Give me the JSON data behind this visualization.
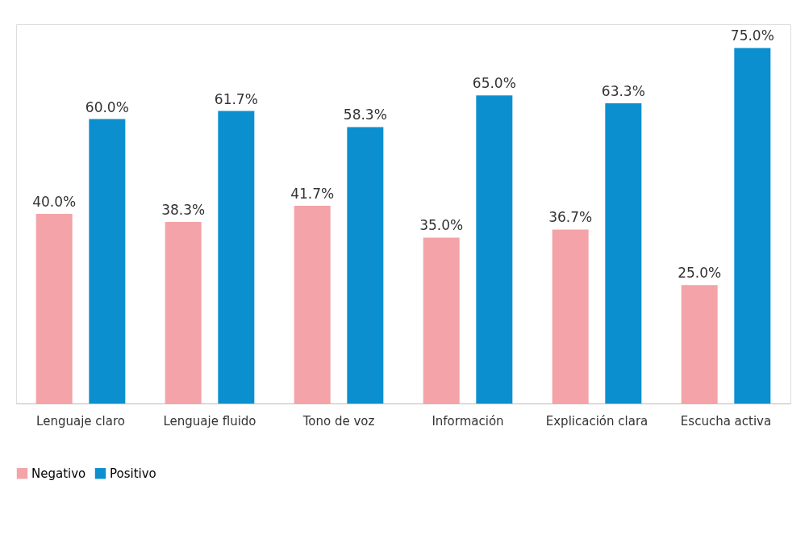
{
  "chart_data": {
    "type": "bar",
    "categories": [
      "Lenguaje claro",
      "Lenguaje fluido",
      "Tono de voz",
      "Información",
      "Explicación clara",
      "Escucha activa"
    ],
    "series": [
      {
        "name": "Negativo",
        "color": "#f4a3a8",
        "values": [
          40.0,
          38.3,
          41.7,
          35.0,
          36.7,
          25.0
        ],
        "value_labels": [
          "40.0%",
          "38.3%",
          "41.7%",
          "35.0%",
          "36.7%",
          "25.0%"
        ]
      },
      {
        "name": "Positivo",
        "color": "#0b8fcf",
        "values": [
          60.0,
          61.7,
          58.3,
          65.0,
          63.3,
          75.0
        ],
        "value_labels": [
          "60.0%",
          "61.7%",
          "58.3%",
          "65.0%",
          "63.3%",
          "75.0%"
        ]
      }
    ],
    "tick_labels": "x",
    "grid": false,
    "legend": "bottom"
  }
}
